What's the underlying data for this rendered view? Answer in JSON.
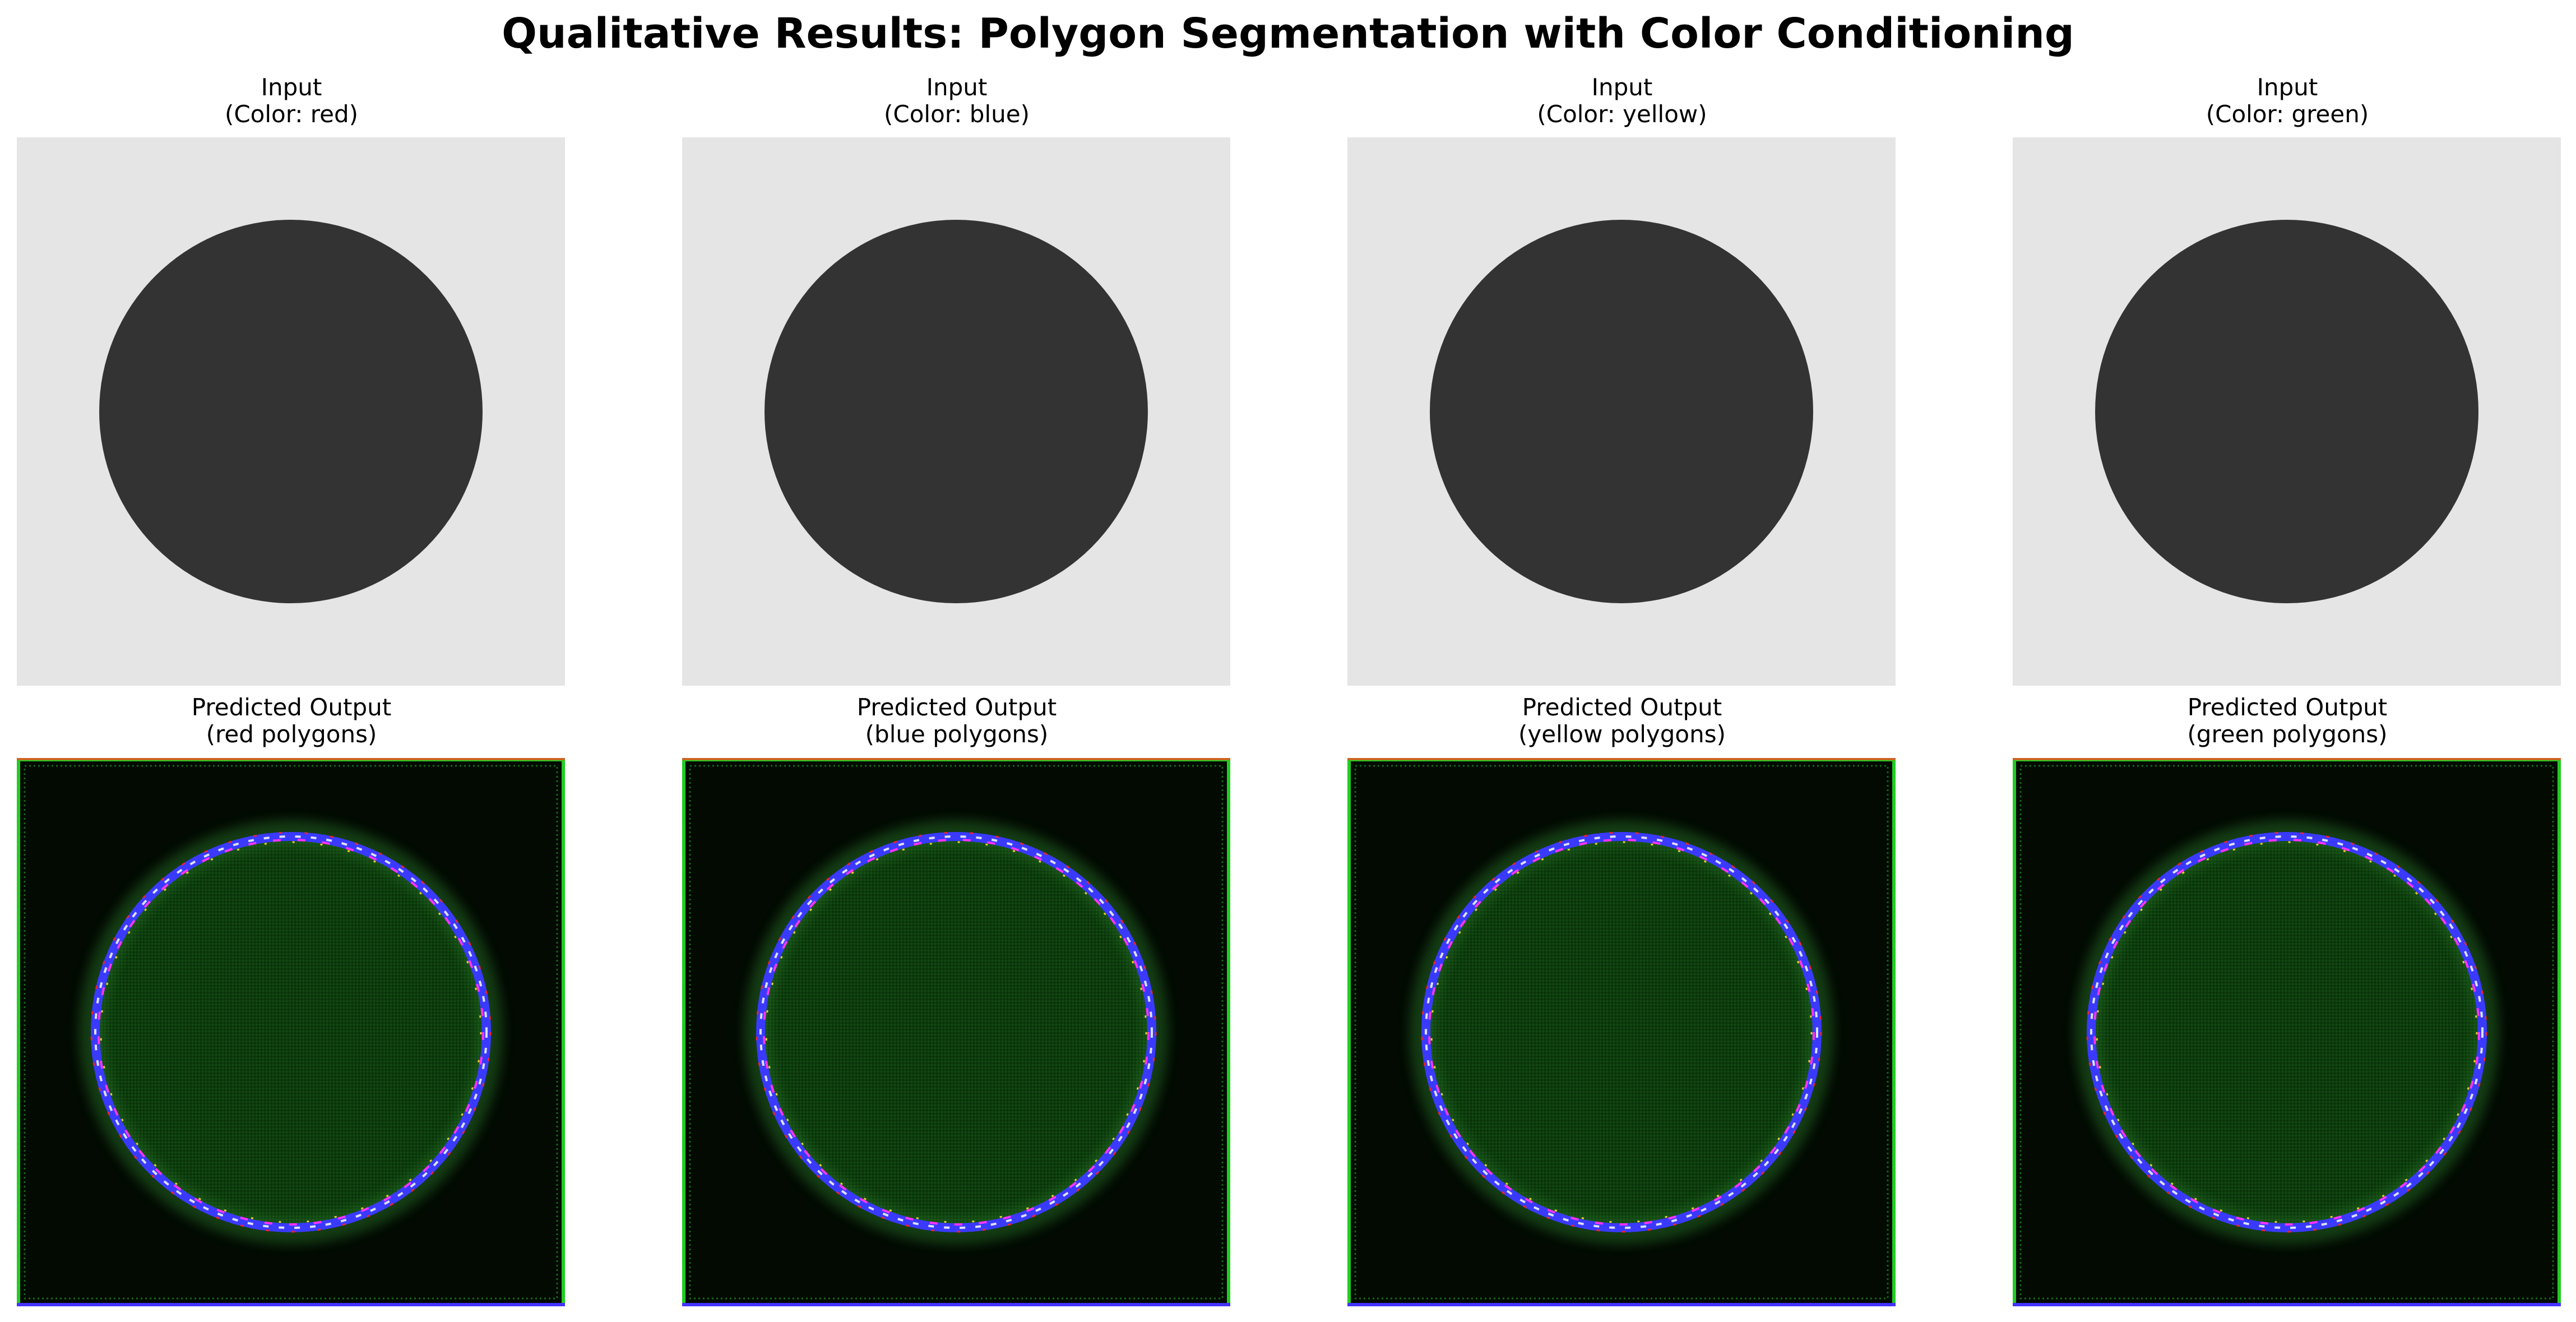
{
  "title": "Qualitative Results: Polygon Segmentation with Color Conditioning",
  "colors": {
    "input_background": "#e5e5e5",
    "input_shape": "#333333",
    "output_background": "#020a02",
    "output_fill": "#0c3a0c",
    "ring_blue": "#3a3aff",
    "ring_white": "#dde0ff",
    "ring_magenta": "#ff33ff",
    "ring_red": "#ff2020",
    "ring_yellow": "#ffe030",
    "border_green": "#22cc22",
    "border_orange": "#cc6622",
    "border_blue": "#4433ff"
  },
  "columns": [
    {
      "input_title": "Input",
      "input_subtitle": "(Color: red)",
      "output_title": "Predicted Output",
      "output_subtitle": "(red polygons)"
    },
    {
      "input_title": "Input",
      "input_subtitle": "(Color: blue)",
      "output_title": "Predicted Output",
      "output_subtitle": "(blue polygons)"
    },
    {
      "input_title": "Input",
      "input_subtitle": "(Color: yellow)",
      "output_title": "Predicted Output",
      "output_subtitle": "(yellow polygons)"
    },
    {
      "input_title": "Input",
      "input_subtitle": "(Color: green)",
      "output_title": "Predicted Output",
      "output_subtitle": "(green polygons)"
    }
  ]
}
